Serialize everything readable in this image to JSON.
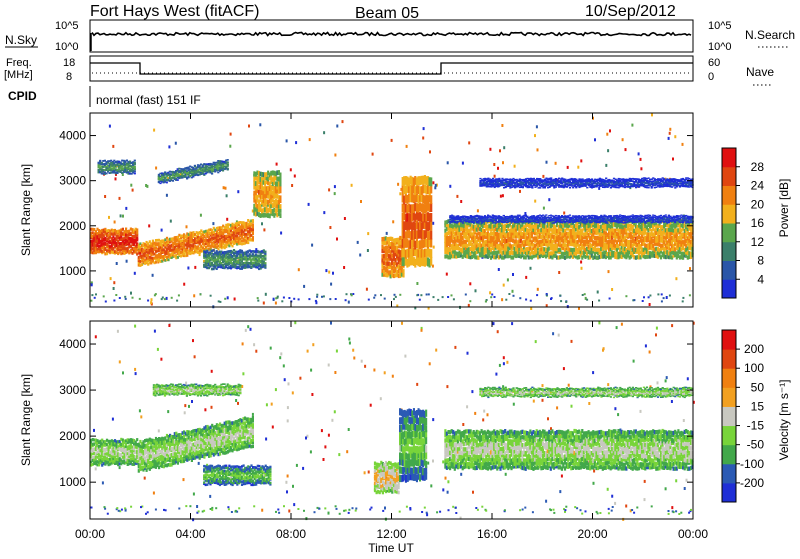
{
  "header": {
    "station": "Fort Hays West (fitACF)",
    "beam": "Beam 05",
    "date": "10/Sep/2012"
  },
  "top_panels": {
    "nsky_label": "N.Sky",
    "nsky_ticks": [
      "10^5",
      "10^0"
    ],
    "nsearch_label": "N.Search",
    "nsearch_ticks": [
      "10^5",
      "10^0"
    ],
    "freq_label_1": "Freq.",
    "freq_label_2": "[MHz]",
    "freq_ticks": [
      "18",
      "8"
    ],
    "nave_label": "Nave",
    "nave_ticks": [
      "60",
      "0"
    ],
    "cpid_label": "CPID",
    "cpid_text": "normal (fast) 151 IF"
  },
  "colors": {
    "power": [
      "#1f2fd6",
      "#2a56a8",
      "#3b7f6a",
      "#5aa64c",
      "#f2b01c",
      "#f08010",
      "#e04610",
      "#e01010"
    ],
    "velocity": [
      "#1f2fd6",
      "#2b5ab4",
      "#42a84a",
      "#78d43a",
      "#c8c8c0",
      "#f2a020",
      "#f08010",
      "#e04610",
      "#e01010"
    ]
  },
  "chart_data": [
    {
      "type": "heatmap",
      "name": "power",
      "ylabel": "Slant Range [km]",
      "ylim": [
        200,
        4500
      ],
      "yticks": [
        "1000",
        "2000",
        "3000",
        "4000"
      ],
      "colorbar_label": "Power [dB]",
      "colorbar_ticks": [
        "28",
        "24",
        "20",
        "16",
        "12",
        "8",
        "4"
      ],
      "features": [
        {
          "t": [
            0.0,
            1.9
          ],
          "range_center": 1650,
          "range_half": 250,
          "level": 7
        },
        {
          "t": [
            1.9,
            6.5
          ],
          "range_center": 1350,
          "range_half": 220,
          "level": 6,
          "slope": 120
        },
        {
          "t": [
            0.3,
            1.8
          ],
          "range_center": 3300,
          "range_half": 120,
          "level": 3
        },
        {
          "t": [
            2.7,
            5.5
          ],
          "range_center": 3050,
          "range_half": 100,
          "level": 3,
          "slope": 110
        },
        {
          "t": [
            4.5,
            7.0
          ],
          "range_center": 1250,
          "range_half": 180,
          "level": 3
        },
        {
          "t": [
            6.5,
            7.6
          ],
          "range_center": 2700,
          "range_half": 450,
          "level": 5
        },
        {
          "t": [
            11.6,
            12.5
          ],
          "range_center": 1300,
          "range_half": 400,
          "level": 6
        },
        {
          "t": [
            12.4,
            13.6
          ],
          "range_center": 2100,
          "range_half": 900,
          "level": 6
        },
        {
          "t": [
            14.1,
            24.0
          ],
          "range_center": 1700,
          "range_half": 380,
          "level": 5
        },
        {
          "t": [
            15.5,
            24.0
          ],
          "range_center": 2950,
          "range_half": 80,
          "level": 1
        },
        {
          "t": [
            14.3,
            24.0
          ],
          "range_center": 2150,
          "range_half": 60,
          "level": 1
        }
      ]
    },
    {
      "type": "heatmap",
      "name": "velocity",
      "ylabel": "Slant Range [km]",
      "ylim": [
        200,
        4500
      ],
      "yticks": [
        "1000",
        "2000",
        "3000",
        "4000"
      ],
      "colorbar_label": "Velocity [m s⁻¹]",
      "colorbar_ticks": [
        "200",
        "100",
        "50",
        "15",
        "-15",
        "-50",
        "-100",
        "-200"
      ],
      "features": [
        {
          "t": [
            0.0,
            1.9
          ],
          "range_center": 1650,
          "range_half": 250,
          "level": 4
        },
        {
          "t": [
            1.9,
            6.5
          ],
          "range_center": 1550,
          "range_half": 300,
          "level": 4,
          "slope": 120
        },
        {
          "t": [
            2.5,
            6.0
          ],
          "range_center": 3000,
          "range_half": 100,
          "level": 4
        },
        {
          "t": [
            4.5,
            7.2
          ],
          "range_center": 1150,
          "range_half": 180,
          "level": 3
        },
        {
          "t": [
            11.3,
            12.3
          ],
          "range_center": 1100,
          "range_half": 300,
          "level": 5
        },
        {
          "t": [
            12.3,
            13.4
          ],
          "range_center": 1800,
          "range_half": 700,
          "level": 3
        },
        {
          "t": [
            14.1,
            24.0
          ],
          "range_center": 1700,
          "range_half": 380,
          "level": 4
        },
        {
          "t": [
            15.5,
            24.0
          ],
          "range_center": 2950,
          "range_half": 80,
          "level": 4
        }
      ]
    }
  ],
  "x_axis": {
    "label": "Time UT",
    "ticks": [
      "00:00",
      "04:00",
      "08:00",
      "12:00",
      "16:00",
      "20:00",
      "00:00"
    ],
    "range_hours": [
      0,
      24
    ]
  }
}
